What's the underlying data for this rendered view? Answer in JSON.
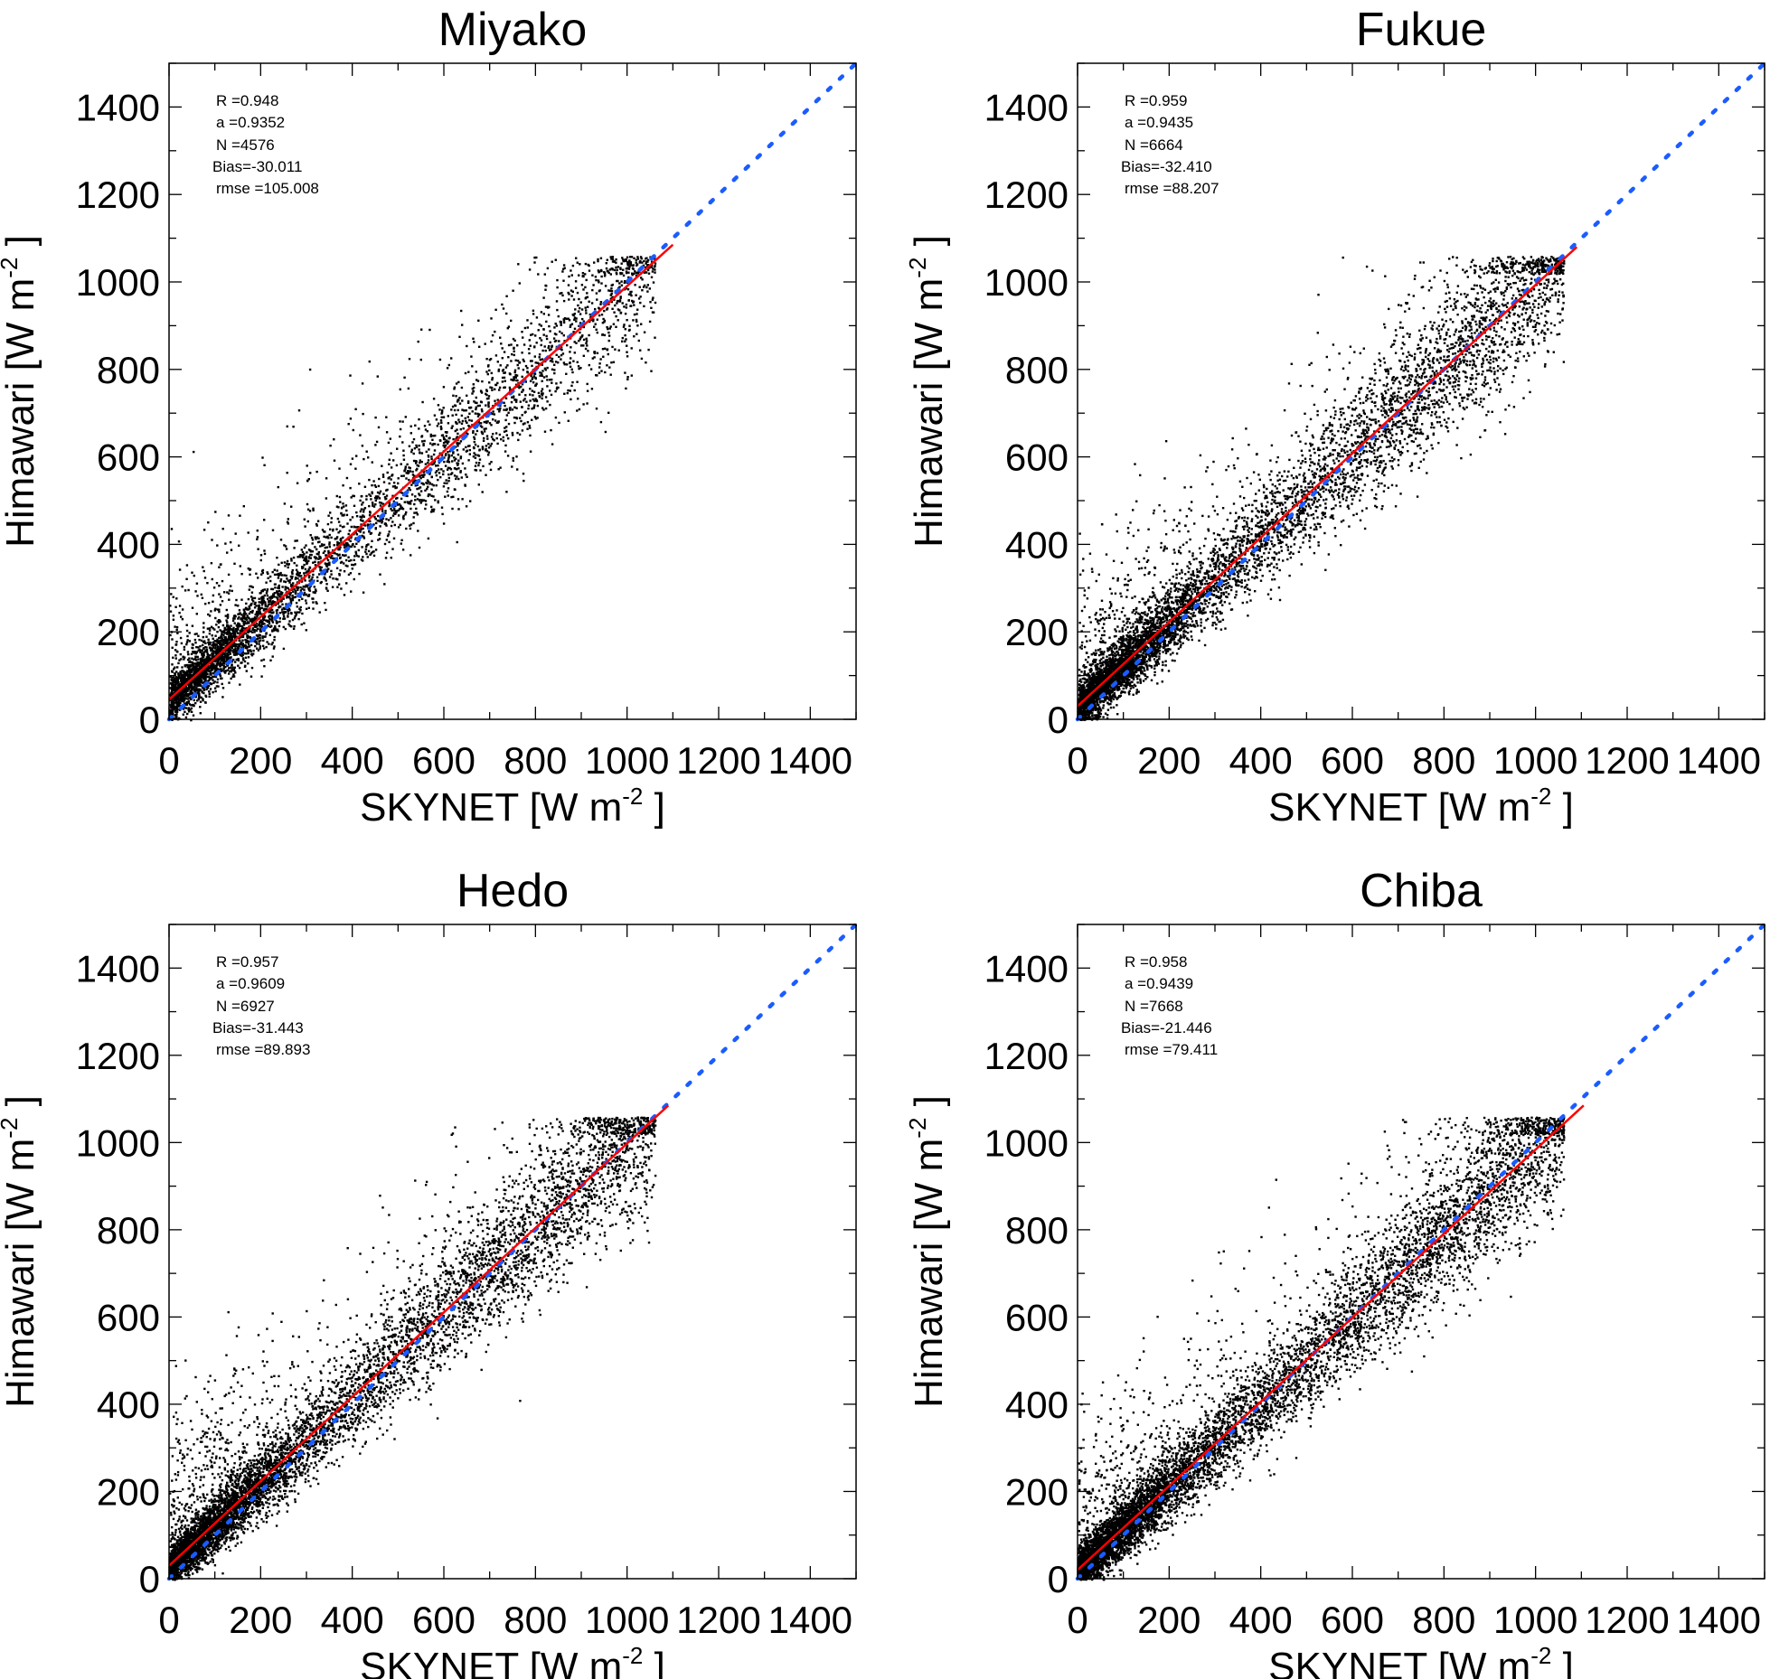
{
  "chart_data": [
    {
      "type": "scatter",
      "title": "Miyako",
      "xlabel": "SKYNET [W m-2]",
      "ylabel": "Himawari [W m-2]",
      "xlim": [
        0,
        1500
      ],
      "ylim": [
        0,
        1500
      ],
      "xticks": [
        "0",
        "200",
        "400",
        "600",
        "800",
        "1000",
        "1200",
        "1400"
      ],
      "yticks": [
        "0",
        "200",
        "400",
        "600",
        "800",
        "1000",
        "1200",
        "1400"
      ],
      "stats": {
        "R": "R =0.948",
        "a": "a =0.9352",
        "N": "N =4576",
        "bias": "Bias=-30.011",
        "rmse": "rmse =105.008"
      },
      "n_points": 4576,
      "fit_line": {
        "x": [
          0,
          1100
        ],
        "y": [
          45,
          1085
        ]
      },
      "one_to_one": {
        "x": [
          0,
          1500
        ],
        "y": [
          0,
          1500
        ]
      }
    },
    {
      "type": "scatter",
      "title": "Fukue",
      "xlabel": "SKYNET [W m-2]",
      "ylabel": "Himawari [W m-2]",
      "xlim": [
        0,
        1500
      ],
      "ylim": [
        0,
        1500
      ],
      "xticks": [
        "0",
        "200",
        "400",
        "600",
        "800",
        "1000",
        "1200",
        "1400"
      ],
      "yticks": [
        "0",
        "200",
        "400",
        "600",
        "800",
        "1000",
        "1200",
        "1400"
      ],
      "stats": {
        "R": "R =0.959",
        "a": "a =0.9435",
        "N": "N =6664",
        "bias": "Bias=-32.410",
        "rmse": "rmse =88.207"
      },
      "n_points": 6664,
      "fit_line": {
        "x": [
          0,
          1090
        ],
        "y": [
          30,
          1080
        ]
      },
      "one_to_one": {
        "x": [
          0,
          1500
        ],
        "y": [
          0,
          1500
        ]
      }
    },
    {
      "type": "scatter",
      "title": "Hedo",
      "xlabel": "SKYNET [W m-2]",
      "ylabel": "Himawari [W m-2]",
      "xlim": [
        0,
        1500
      ],
      "ylim": [
        0,
        1500
      ],
      "xticks": [
        "0",
        "200",
        "400",
        "600",
        "800",
        "1000",
        "1200",
        "1400"
      ],
      "yticks": [
        "0",
        "200",
        "400",
        "600",
        "800",
        "1000",
        "1200",
        "1400"
      ],
      "stats": {
        "R": "R =0.957",
        "a": "a =0.9609",
        "N": "N =6927",
        "bias": "Bias=-31.443",
        "rmse": "rmse =89.893"
      },
      "n_points": 6927,
      "fit_line": {
        "x": [
          0,
          1090
        ],
        "y": [
          30,
          1085
        ]
      },
      "one_to_one": {
        "x": [
          0,
          1500
        ],
        "y": [
          0,
          1500
        ]
      }
    },
    {
      "type": "scatter",
      "title": "Chiba",
      "xlabel": "SKYNET [W m-2]",
      "ylabel": "Himawari [W m-2]",
      "xlim": [
        0,
        1500
      ],
      "ylim": [
        0,
        1500
      ],
      "xticks": [
        "0",
        "200",
        "400",
        "600",
        "800",
        "1000",
        "1200",
        "1400"
      ],
      "yticks": [
        "0",
        "200",
        "400",
        "600",
        "800",
        "1000",
        "1200",
        "1400"
      ],
      "stats": {
        "R": "R =0.958",
        "a": "a =0.9439",
        "N": "N =7668",
        "bias": "Bias=-21.446",
        "rmse": "rmse =79.411"
      },
      "n_points": 7668,
      "fit_line": {
        "x": [
          0,
          1105
        ],
        "y": [
          20,
          1085
        ]
      },
      "one_to_one": {
        "x": [
          0,
          1500
        ],
        "y": [
          0,
          1500
        ]
      }
    }
  ],
  "colors": {
    "points": "#000000",
    "fit": "#ff0000",
    "one_to_one": "#1a5cff"
  }
}
